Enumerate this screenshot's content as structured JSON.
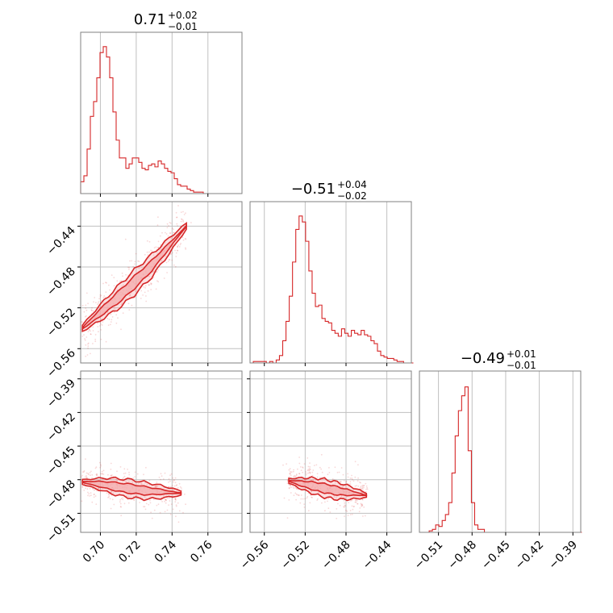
{
  "chart_data": {
    "type": "corner",
    "accent_color": "#d62728",
    "fill_color": "#f4a6a8",
    "grid_color": "#c0c0c0",
    "parameters": [
      {
        "title_value": "0.71",
        "title_plus": "+0.02",
        "title_minus": "−0.01",
        "range": [
          0.689,
          0.779
        ],
        "ticks": [
          0.7,
          0.72,
          0.74,
          0.76
        ],
        "tick_labels": [
          "0.70",
          "0.72",
          "0.74",
          "0.76"
        ],
        "hist_x": [
          0.689,
          0.6908,
          0.6926,
          0.6944,
          0.6962,
          0.698,
          0.6998,
          0.7016,
          0.7034,
          0.7052,
          0.707,
          0.7088,
          0.7106,
          0.7124,
          0.7142,
          0.716,
          0.7178,
          0.7196,
          0.7214,
          0.7232,
          0.725,
          0.7268,
          0.7286,
          0.7304,
          0.7322,
          0.734,
          0.7358,
          0.7376,
          0.7394,
          0.7412,
          0.743,
          0.7448,
          0.7466,
          0.7484,
          0.7502,
          0.752,
          0.7538,
          0.7556,
          0.7574,
          0.7592,
          0.761,
          0.7628,
          0.7646,
          0.7664,
          0.7682,
          0.77,
          0.7718,
          0.7736,
          0.7754,
          0.7772
        ],
        "hist_y": [
          0.08,
          0.12,
          0.3,
          0.52,
          0.62,
          0.78,
          0.95,
          0.99,
          0.92,
          0.78,
          0.55,
          0.36,
          0.24,
          0.24,
          0.17,
          0.2,
          0.24,
          0.24,
          0.21,
          0.17,
          0.16,
          0.19,
          0.2,
          0.18,
          0.22,
          0.2,
          0.17,
          0.15,
          0.14,
          0.1,
          0.06,
          0.05,
          0.05,
          0.03,
          0.02,
          0.01,
          0.01,
          0.01,
          0.0,
          0.0,
          0.0,
          0.0,
          0.0,
          0.0,
          0.0,
          0.0,
          0.0,
          0.0,
          0.0,
          0.0
        ]
      },
      {
        "title_value": "−0.51",
        "title_plus": "+0.04",
        "title_minus": "−0.02",
        "range": [
          -0.574,
          -0.416
        ],
        "ticks": [
          -0.56,
          -0.52,
          -0.48,
          -0.44
        ],
        "tick_labels": [
          "−0.56",
          "−0.52",
          "−0.48",
          "−0.44"
        ],
        "hist_x": [
          -0.574,
          -0.5708,
          -0.5676,
          -0.5644,
          -0.5612,
          -0.558,
          -0.5548,
          -0.5516,
          -0.5484,
          -0.5452,
          -0.542,
          -0.5388,
          -0.5356,
          -0.5324,
          -0.5292,
          -0.526,
          -0.5228,
          -0.5196,
          -0.5164,
          -0.5132,
          -0.51,
          -0.5068,
          -0.5036,
          -0.5004,
          -0.4972,
          -0.494,
          -0.4908,
          -0.4876,
          -0.4844,
          -0.4812,
          -0.478,
          -0.4748,
          -0.4716,
          -0.4684,
          -0.4652,
          -0.462,
          -0.4588,
          -0.4556,
          -0.4524,
          -0.4492,
          -0.446,
          -0.4428,
          -0.4396,
          -0.4364,
          -0.4332,
          -0.43,
          -0.4268,
          -0.4236,
          -0.4204,
          -0.4172
        ],
        "hist_y": [
          0.0,
          0.01,
          0.01,
          0.01,
          0.01,
          0.0,
          0.01,
          0.0,
          0.02,
          0.05,
          0.15,
          0.28,
          0.45,
          0.68,
          0.9,
          0.99,
          0.95,
          0.82,
          0.62,
          0.47,
          0.38,
          0.39,
          0.3,
          0.28,
          0.27,
          0.22,
          0.2,
          0.18,
          0.23,
          0.2,
          0.18,
          0.22,
          0.2,
          0.19,
          0.22,
          0.19,
          0.18,
          0.15,
          0.13,
          0.08,
          0.05,
          0.04,
          0.03,
          0.03,
          0.02,
          0.01,
          0.01,
          0.0,
          0.0,
          0.0
        ]
      },
      {
        "title_value": "−0.49",
        "title_plus": "+0.01",
        "title_minus": "−0.01",
        "range": [
          -0.527,
          -0.383
        ],
        "ticks": [
          -0.51,
          -0.48,
          -0.45,
          -0.42,
          -0.39
        ],
        "tick_labels": [
          "−0.51",
          "−0.48",
          "−0.45",
          "−0.42",
          "−0.39"
        ],
        "hist_x": [
          -0.527,
          -0.5241,
          -0.5212,
          -0.5183,
          -0.5154,
          -0.5125,
          -0.5096,
          -0.5067,
          -0.5038,
          -0.5009,
          -0.498,
          -0.4951,
          -0.4922,
          -0.4893,
          -0.4864,
          -0.4835,
          -0.4806,
          -0.4777,
          -0.4748,
          -0.4719,
          -0.469,
          -0.4661,
          -0.4632,
          -0.4603,
          -0.4574,
          -0.4545,
          -0.4516,
          -0.4487,
          -0.4458,
          -0.4429,
          -0.44,
          -0.4371,
          -0.4342,
          -0.4313,
          -0.4284,
          -0.4255,
          -0.4226,
          -0.4197,
          -0.4168,
          -0.4139,
          -0.411,
          -0.4081,
          -0.4052,
          -0.4023,
          -0.3994,
          -0.3965,
          -0.3936,
          -0.3907,
          -0.3878,
          -0.3849
        ],
        "hist_y": [
          0.0,
          0.0,
          0.0,
          0.01,
          0.02,
          0.05,
          0.04,
          0.08,
          0.12,
          0.2,
          0.4,
          0.65,
          0.82,
          0.92,
          0.98,
          0.55,
          0.2,
          0.05,
          0.02,
          0.02,
          0.0,
          0.0,
          0.0,
          0.0,
          0.0,
          0.0,
          0.0,
          0.0,
          0.0,
          0.0,
          0.0,
          0.0,
          0.0,
          0.0,
          0.0,
          0.0,
          0.0,
          0.0,
          0.0,
          0.0,
          0.0,
          0.0,
          0.0,
          0.0,
          0.0,
          0.0,
          0.0,
          0.0,
          0.0,
          0.0
        ]
      }
    ],
    "pairs": [
      {
        "row": 1,
        "col": 0,
        "center": [
          0.715,
          -0.505
        ],
        "slope": 1.6,
        "curve_x": [
          0.69,
          0.703,
          0.713,
          0.728,
          0.748
        ],
        "curve_y": [
          -0.54,
          -0.52,
          -0.505,
          -0.48,
          -0.44
        ],
        "spread_inner": 0.006,
        "spread_outer": 0.012
      },
      {
        "row": 2,
        "col": 0,
        "curve_x": [
          0.69,
          0.7,
          0.712,
          0.726,
          0.745
        ],
        "curve_y": [
          -0.482,
          -0.484,
          -0.487,
          -0.49,
          -0.492
        ],
        "spread_inner": 0.004,
        "spread_outer": 0.008
      },
      {
        "row": 2,
        "col": 1,
        "curve_x": [
          -0.536,
          -0.526,
          -0.51,
          -0.488,
          -0.46
        ],
        "curve_y": [
          -0.481,
          -0.483,
          -0.486,
          -0.49,
          -0.494
        ],
        "spread_inner": 0.004,
        "spread_outer": 0.008
      }
    ]
  }
}
